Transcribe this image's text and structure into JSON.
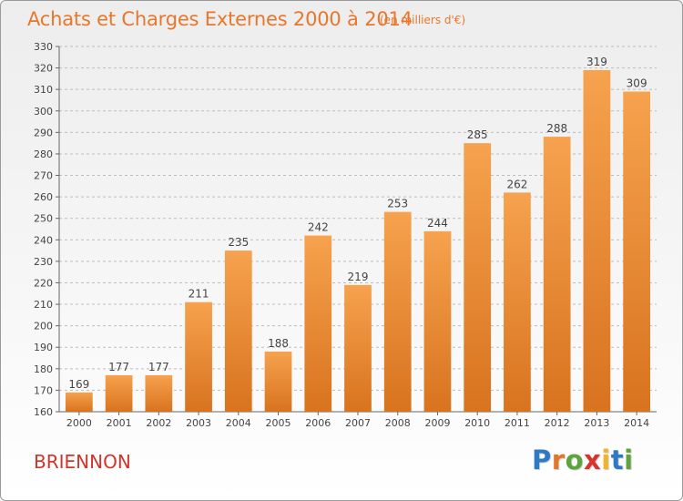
{
  "header": {
    "title": "Achats et Charges Externes 2000 à 2014",
    "unit": "(en milliers d'€)"
  },
  "footer": {
    "commune": "BRIENNON",
    "logo_text": "Proxiti",
    "logo_letters": [
      {
        "ch": "P",
        "color": "#2f78c4"
      },
      {
        "ch": "r",
        "color": "#e2762b"
      },
      {
        "ch": "o",
        "color": "#5ea43a"
      },
      {
        "ch": "x",
        "color": "#d9332b"
      },
      {
        "ch": "i",
        "color": "#f0b42a"
      },
      {
        "ch": "t",
        "color": "#2f78c4"
      },
      {
        "ch": "i",
        "color": "#5ea43a"
      }
    ]
  },
  "colors": {
    "accent": "#e9772b",
    "commune": "#d0352b",
    "bar_light": "#f6a24e",
    "bar_dark": "#d8731f",
    "grid": "#bdbdbd"
  },
  "chart_data": {
    "type": "bar",
    "title": "Achats et Charges Externes 2000 à 2014",
    "subtitle": "(en milliers d'€)",
    "categories": [
      "2000",
      "2001",
      "2002",
      "2003",
      "2004",
      "2005",
      "2006",
      "2007",
      "2008",
      "2009",
      "2010",
      "2011",
      "2012",
      "2013",
      "2014"
    ],
    "values": [
      169,
      177,
      177,
      211,
      235,
      188,
      242,
      219,
      253,
      244,
      285,
      262,
      288,
      319,
      309
    ],
    "ylim": [
      160,
      330
    ],
    "ytick_step": 10,
    "grid": true,
    "legend": "none"
  }
}
